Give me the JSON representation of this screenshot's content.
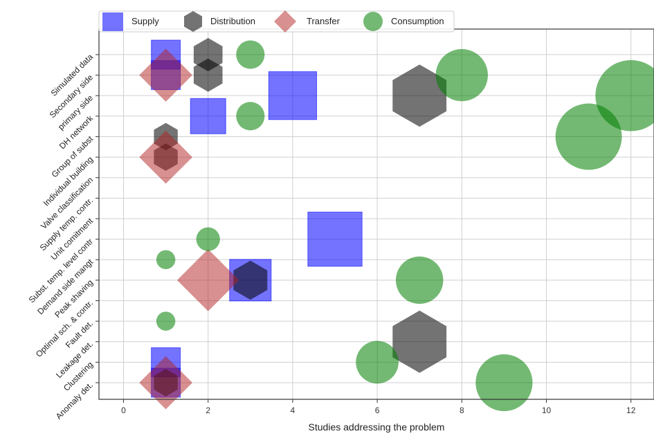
{
  "chart_data": {
    "type": "scatter",
    "xlabel": "Studies addressing the problem",
    "ylabel": "",
    "title": "",
    "xlim": [
      -0.6,
      12.6
    ],
    "xticks": [
      0,
      2,
      4,
      6,
      8,
      10,
      12
    ],
    "grid": true,
    "legend_position": "top-left",
    "categories": [
      "Anomaly det.",
      "Clustering",
      "Leakage det.",
      "Fault det.",
      "Optimal sch. & contr.",
      "Peak shaving",
      "Demand side mangt",
      "Subst. temp. level contr",
      "Unit comitment",
      "Supply temp. contr.",
      "Valve classification",
      "Individual building",
      "Group of subst",
      "DH network",
      "primary side",
      "Secondary side",
      "Simulated data"
    ],
    "series": [
      {
        "name": "Supply",
        "marker": "square",
        "color": "#0000ff",
        "points": [
          {
            "category": "Anomaly det.",
            "x": 1
          },
          {
            "category": "Clustering",
            "x": 1
          },
          {
            "category": "Peak shaving",
            "x": 3
          },
          {
            "category": "Subst. temp. level contr",
            "x": 5
          },
          {
            "category": "DH network",
            "x": 2
          },
          {
            "category": "primary side",
            "x": 4
          },
          {
            "category": "Secondary side",
            "x": 1
          },
          {
            "category": "Simulated data",
            "x": 1
          }
        ]
      },
      {
        "name": "Distribution",
        "marker": "hexagon",
        "color": "#000000",
        "points": [
          {
            "category": "Anomaly det.",
            "x": 1
          },
          {
            "category": "Leakage det.",
            "x": 7
          },
          {
            "category": "Peak shaving",
            "x": 3
          },
          {
            "category": "Individual building",
            "x": 1
          },
          {
            "category": "Group of subst",
            "x": 1
          },
          {
            "category": "primary side",
            "x": 7
          },
          {
            "category": "Secondary side",
            "x": 2
          },
          {
            "category": "Simulated data",
            "x": 2
          }
        ]
      },
      {
        "name": "Transfer",
        "marker": "diamond",
        "color": "#b22222",
        "points": [
          {
            "category": "Anomaly det.",
            "x": 1
          },
          {
            "category": "Peak shaving",
            "x": 2
          },
          {
            "category": "Individual building",
            "x": 1
          },
          {
            "category": "Secondary side",
            "x": 1
          }
        ]
      },
      {
        "name": "Consumption",
        "marker": "circle",
        "color": "#008000",
        "points": [
          {
            "category": "Anomaly det.",
            "x": 9
          },
          {
            "category": "Clustering",
            "x": 6
          },
          {
            "category": "Fault det.",
            "x": 1
          },
          {
            "category": "Peak shaving",
            "x": 7
          },
          {
            "category": "Demand side mangt",
            "x": 1
          },
          {
            "category": "Subst. temp. level contr",
            "x": 2
          },
          {
            "category": "Group of subst",
            "x": 11
          },
          {
            "category": "DH network",
            "x": 3
          },
          {
            "category": "primary side",
            "x": 12
          },
          {
            "category": "Secondary side",
            "x": 8
          },
          {
            "category": "Simulated data",
            "x": 3
          }
        ]
      }
    ]
  }
}
